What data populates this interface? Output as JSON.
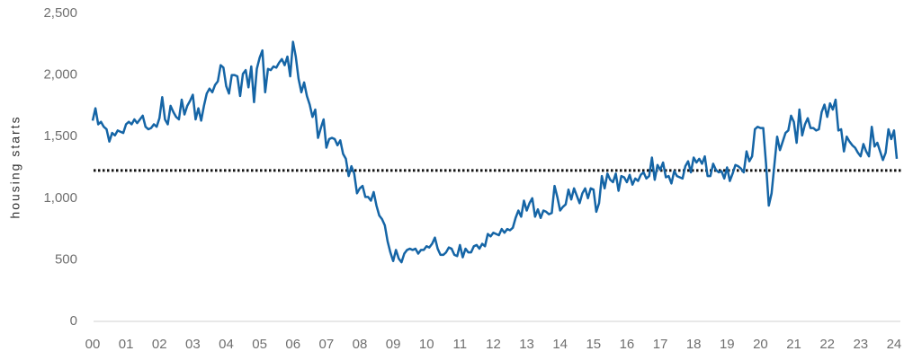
{
  "chart_data": {
    "type": "line",
    "y_label": "housing starts",
    "color": "#1565a6",
    "ylim": [
      0,
      2500
    ],
    "yticks": [
      0,
      500,
      {
        "value": 1000,
        "label": "1,000"
      },
      {
        "value": 1500,
        "label": "1,500"
      },
      {
        "value": 2000,
        "label": "2,000"
      },
      {
        "value": 2500,
        "label": "2,500"
      }
    ],
    "reference_line": 1225,
    "categories": [
      "00",
      null,
      null,
      null,
      null,
      null,
      null,
      null,
      null,
      null,
      null,
      null,
      "01",
      null,
      null,
      null,
      null,
      null,
      null,
      null,
      null,
      null,
      null,
      null,
      "02",
      null,
      null,
      null,
      null,
      null,
      null,
      null,
      null,
      null,
      null,
      null,
      "03",
      null,
      null,
      null,
      null,
      null,
      null,
      null,
      null,
      null,
      null,
      null,
      "04",
      null,
      null,
      null,
      null,
      null,
      null,
      null,
      null,
      null,
      null,
      null,
      "05",
      null,
      null,
      null,
      null,
      null,
      null,
      null,
      null,
      null,
      null,
      null,
      "06",
      null,
      null,
      null,
      null,
      null,
      null,
      null,
      null,
      null,
      null,
      null,
      "07",
      null,
      null,
      null,
      null,
      null,
      null,
      null,
      null,
      null,
      null,
      null,
      "08",
      null,
      null,
      null,
      null,
      null,
      null,
      null,
      null,
      null,
      null,
      null,
      "09",
      null,
      null,
      null,
      null,
      null,
      null,
      null,
      null,
      null,
      null,
      null,
      "10",
      null,
      null,
      null,
      null,
      null,
      null,
      null,
      null,
      null,
      null,
      null,
      "11",
      null,
      null,
      null,
      null,
      null,
      null,
      null,
      null,
      null,
      null,
      null,
      "12",
      null,
      null,
      null,
      null,
      null,
      null,
      null,
      null,
      null,
      null,
      null,
      "13",
      null,
      null,
      null,
      null,
      null,
      null,
      null,
      null,
      null,
      null,
      null,
      "14",
      null,
      null,
      null,
      null,
      null,
      null,
      null,
      null,
      null,
      null,
      null,
      "15",
      null,
      null,
      null,
      null,
      null,
      null,
      null,
      null,
      null,
      null,
      null,
      "16",
      null,
      null,
      null,
      null,
      null,
      null,
      null,
      null,
      null,
      null,
      null,
      "17",
      null,
      null,
      null,
      null,
      null,
      null,
      null,
      null,
      null,
      null,
      null,
      "18",
      null,
      null,
      null,
      null,
      null,
      null,
      null,
      null,
      null,
      null,
      null,
      "19",
      null,
      null,
      null,
      null,
      null,
      null,
      null,
      null,
      null,
      null,
      null,
      "20",
      null,
      null,
      null,
      null,
      null,
      null,
      null,
      null,
      null,
      null,
      null,
      "21",
      null,
      null,
      null,
      null,
      null,
      null,
      null,
      null,
      null,
      null,
      null,
      "22",
      null,
      null,
      null,
      null,
      null,
      null,
      null,
      null,
      null,
      null,
      null,
      "23",
      null,
      null,
      null,
      null,
      null,
      null,
      null,
      null,
      null,
      null,
      null,
      "24",
      null
    ],
    "values": [
      1630,
      1730,
      1600,
      1620,
      1580,
      1560,
      1460,
      1530,
      1510,
      1550,
      1540,
      1530,
      1600,
      1620,
      1600,
      1640,
      1610,
      1640,
      1670,
      1580,
      1560,
      1570,
      1600,
      1580,
      1650,
      1820,
      1640,
      1600,
      1750,
      1700,
      1660,
      1640,
      1800,
      1680,
      1750,
      1790,
      1840,
      1640,
      1730,
      1630,
      1750,
      1850,
      1890,
      1860,
      1920,
      1950,
      2080,
      2060,
      1910,
      1850,
      2000,
      2000,
      1990,
      1830,
      2010,
      2040,
      1900,
      2070,
      1780,
      2050,
      2140,
      2200,
      1860,
      2050,
      2040,
      2070,
      2060,
      2100,
      2130,
      2080,
      2150,
      1990,
      2270,
      2150,
      1970,
      1860,
      1940,
      1830,
      1760,
      1660,
      1720,
      1490,
      1570,
      1640,
      1410,
      1480,
      1490,
      1480,
      1430,
      1470,
      1360,
      1320,
      1180,
      1260,
      1200,
      1040,
      1080,
      1100,
      1010,
      1010,
      980,
      1050,
      940,
      860,
      830,
      780,
      650,
      560,
      490,
      580,
      510,
      480,
      550,
      580,
      590,
      580,
      590,
      550,
      580,
      580,
      610,
      600,
      630,
      680,
      590,
      540,
      540,
      560,
      600,
      590,
      540,
      530,
      620,
      520,
      590,
      560,
      560,
      610,
      620,
      590,
      630,
      610,
      710,
      690,
      720,
      710,
      700,
      750,
      720,
      750,
      740,
      760,
      840,
      900,
      850,
      980,
      900,
      960,
      1000,
      850,
      910,
      840,
      900,
      890,
      870,
      880,
      1100,
      1010,
      900,
      930,
      950,
      1070,
      990,
      1080,
      1020,
      960,
      1040,
      1080,
      1000,
      1080,
      1070,
      890,
      960,
      1180,
      1080,
      1200,
      1150,
      1130,
      1200,
      1060,
      1180,
      1170,
      1130,
      1190,
      1110,
      1160,
      1140,
      1190,
      1210,
      1160,
      1180,
      1330,
      1150,
      1270,
      1230,
      1290,
      1170,
      1180,
      1120,
      1220,
      1180,
      1170,
      1160,
      1260,
      1300,
      1210,
      1330,
      1290,
      1320,
      1280,
      1340,
      1180,
      1180,
      1280,
      1230,
      1210,
      1220,
      1160,
      1250,
      1140,
      1200,
      1270,
      1260,
      1240,
      1210,
      1380,
      1300,
      1340,
      1560,
      1580,
      1570,
      1570,
      1280,
      940,
      1040,
      1270,
      1500,
      1390,
      1460,
      1530,
      1550,
      1670,
      1620,
      1450,
      1720,
      1510,
      1600,
      1650,
      1570,
      1570,
      1550,
      1560,
      1700,
      1760,
      1660,
      1770,
      1720,
      1800,
      1550,
      1560,
      1380,
      1500,
      1460,
      1430,
      1410,
      1370,
      1340,
      1440,
      1380,
      1340,
      1580,
      1420,
      1450,
      1380,
      1310,
      1370,
      1560,
      1480,
      1550,
      1320
    ]
  }
}
